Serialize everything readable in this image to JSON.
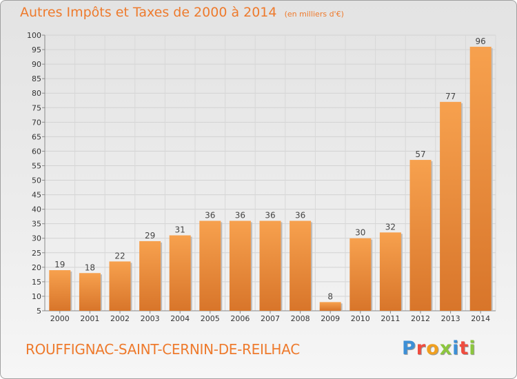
{
  "header": {
    "title": "Autres Impôts et Taxes de 2000 à 2014",
    "subtitle": "(en milliers d'€)"
  },
  "footer": {
    "commune": "ROUFFIGNAC-SAINT-CERNIN-DE-REILHAC",
    "brand": "Proxiti"
  },
  "colors": {
    "bar_light": "#f7a14e",
    "bar_dark": "#d8752a",
    "title": "#ee7a2c",
    "brand_letters": [
      "#3c8fd6",
      "#ef4c3f",
      "#f0a020",
      "#8cc63e",
      "#3c8fd6",
      "#ef4c3f",
      "#8cc63e"
    ]
  },
  "chart_data": {
    "type": "bar",
    "title": "Autres Impôts et Taxes de 2000 à 2014",
    "subtitle": "(en milliers d'€)",
    "categories": [
      "2000",
      "2001",
      "2002",
      "2003",
      "2004",
      "2005",
      "2006",
      "2007",
      "2008",
      "2009",
      "2010",
      "2011",
      "2012",
      "2013",
      "2014"
    ],
    "values": [
      19,
      18,
      22,
      29,
      31,
      36,
      36,
      36,
      36,
      8,
      30,
      32,
      57,
      77,
      96
    ],
    "ylim": [
      5,
      100
    ],
    "yticks": [
      5,
      10,
      15,
      20,
      25,
      30,
      35,
      40,
      45,
      50,
      55,
      60,
      65,
      70,
      75,
      80,
      85,
      90,
      95,
      100
    ],
    "grid": true,
    "data_labels": true
  }
}
